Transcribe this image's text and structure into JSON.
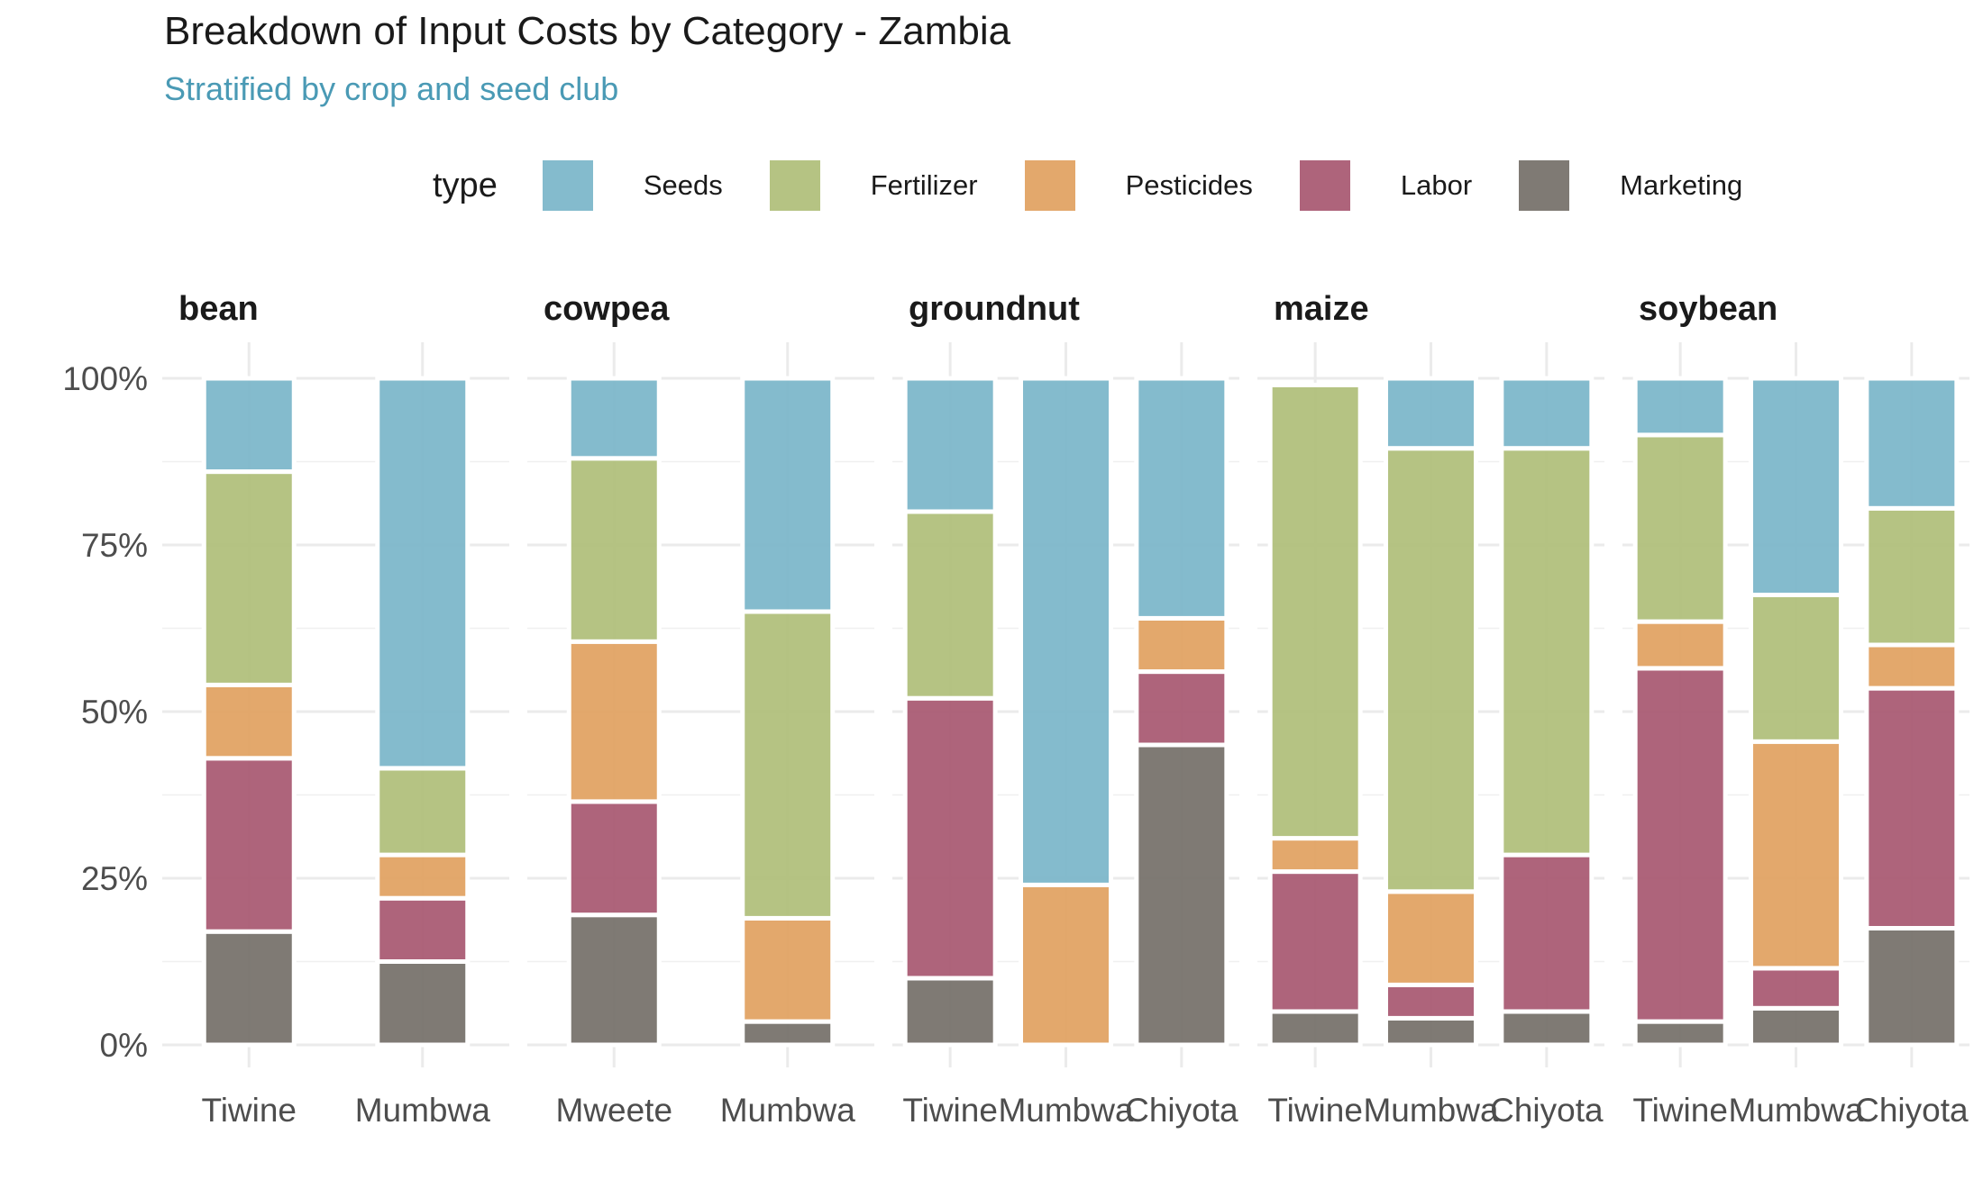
{
  "chart_data": {
    "type": "bar",
    "stacked": "percent",
    "title": "Breakdown of Input Costs by Category - Zambia",
    "subtitle": "Stratified by crop and seed club",
    "legend": {
      "title": "type",
      "position": "top",
      "entries": [
        "Seeds",
        "Fertilizer",
        "Pesticides",
        "Labor",
        "Marketing"
      ]
    },
    "colors": {
      "Seeds": "#7DB7CA",
      "Fertilizer": "#B1C07C",
      "Pesticides": "#E2A364",
      "Labor": "#AA5C74",
      "Marketing": "#78736D"
    },
    "text_colors": {
      "title": "#1a1a1a",
      "subtitle": "#4A9AB5"
    },
    "stack_order_bottom_to_top": [
      "Marketing",
      "Labor",
      "Pesticides",
      "Fertilizer",
      "Seeds"
    ],
    "y_axis": {
      "ylim": [
        0,
        100
      ],
      "ticks": [
        "0%",
        "25%",
        "50%",
        "75%",
        "100%"
      ]
    },
    "grid": true,
    "facets": [
      {
        "name": "bean",
        "bars": [
          {
            "club": "Tiwine",
            "Marketing": 17,
            "Labor": 26,
            "Pesticides": 11,
            "Fertilizer": 32,
            "Seeds": 14
          },
          {
            "club": "Mumbwa",
            "Marketing": 12.5,
            "Labor": 9.5,
            "Pesticides": 6.5,
            "Fertilizer": 13,
            "Seeds": 58.5
          }
        ]
      },
      {
        "name": "cowpea",
        "bars": [
          {
            "club": "Mweete",
            "Marketing": 19.5,
            "Labor": 17,
            "Pesticides": 24,
            "Fertilizer": 27.5,
            "Seeds": 12
          },
          {
            "club": "Mumbwa",
            "Marketing": 3.5,
            "Labor": 0,
            "Pesticides": 15.5,
            "Fertilizer": 46,
            "Seeds": 35
          }
        ]
      },
      {
        "name": "groundnut",
        "bars": [
          {
            "club": "Tiwine",
            "Marketing": 10,
            "Labor": 42,
            "Pesticides": 0,
            "Fertilizer": 28,
            "Seeds": 20
          },
          {
            "club": "Mumbwa",
            "Marketing": 0,
            "Labor": 0,
            "Pesticides": 24,
            "Fertilizer": 0,
            "Seeds": 76
          },
          {
            "club": "Chiyota",
            "Marketing": 45,
            "Labor": 11,
            "Pesticides": 8,
            "Fertilizer": 0,
            "Seeds": 36
          }
        ]
      },
      {
        "name": "maize",
        "bars": [
          {
            "club": "Tiwine",
            "Marketing": 5,
            "Labor": 21,
            "Pesticides": 5,
            "Fertilizer": 68,
            "Seeds": 0
          },
          {
            "club": "Mumbwa",
            "Marketing": 4,
            "Labor": 5,
            "Pesticides": 14,
            "Fertilizer": 66.5,
            "Seeds": 10.5
          },
          {
            "club": "Chiyota",
            "Marketing": 5,
            "Labor": 23.5,
            "Pesticides": 0,
            "Fertilizer": 61,
            "Seeds": 10.5
          }
        ]
      },
      {
        "name": "soybean",
        "bars": [
          {
            "club": "Tiwine",
            "Marketing": 3.5,
            "Labor": 53,
            "Pesticides": 7,
            "Fertilizer": 28,
            "Seeds": 8.5
          },
          {
            "club": "Mumbwa",
            "Marketing": 5.5,
            "Labor": 6,
            "Pesticides": 34,
            "Fertilizer": 22,
            "Seeds": 32.5
          },
          {
            "club": "Chiyota",
            "Marketing": 17.5,
            "Labor": 36,
            "Pesticides": 6.5,
            "Fertilizer": 20.5,
            "Seeds": 19.5
          }
        ]
      }
    ]
  }
}
